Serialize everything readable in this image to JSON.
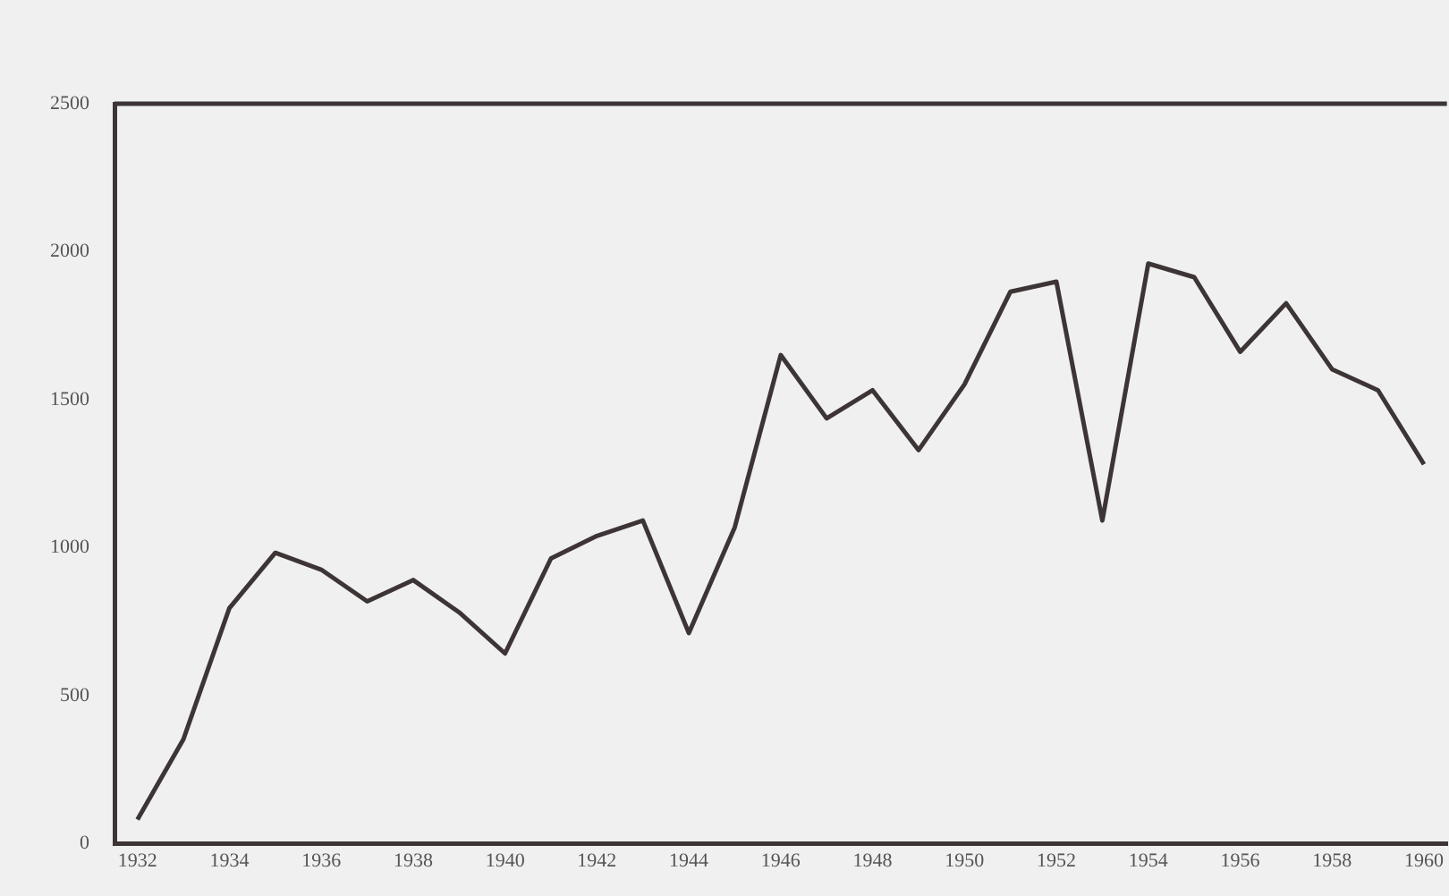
{
  "chart_data": {
    "type": "line",
    "x": [
      1932,
      1933,
      1934,
      1935,
      1936,
      1937,
      1938,
      1939,
      1940,
      1941,
      1942,
      1943,
      1944,
      1945,
      1946,
      1947,
      1948,
      1949,
      1950,
      1951,
      1952,
      1953,
      1954,
      1955,
      1956,
      1957,
      1958,
      1959,
      1960
    ],
    "series": [
      {
        "color": "#3d3535",
        "values": [
          82,
          353,
          796,
          983,
          926,
          819,
          891,
          782,
          643,
          964,
          1040,
          1092,
          712,
          1069,
          1651,
          1437,
          1532,
          1330,
          1552,
          1865,
          1899,
          1092,
          1960,
          1914,
          1662,
          1826,
          1603,
          1532,
          1282
        ]
      }
    ],
    "xlim": [
      1931.5,
      1960.5
    ],
    "xticks": [
      1932,
      1934,
      1936,
      1938,
      1940,
      1942,
      1944,
      1946,
      1948,
      1950,
      1952,
      1954,
      1956,
      1958,
      1960
    ],
    "ylim": [
      0,
      2500
    ],
    "yticks": [
      0,
      500,
      1000,
      1500,
      2000,
      2500
    ],
    "grid": false,
    "legend": false,
    "marker": "none",
    "line_style": "solid"
  }
}
